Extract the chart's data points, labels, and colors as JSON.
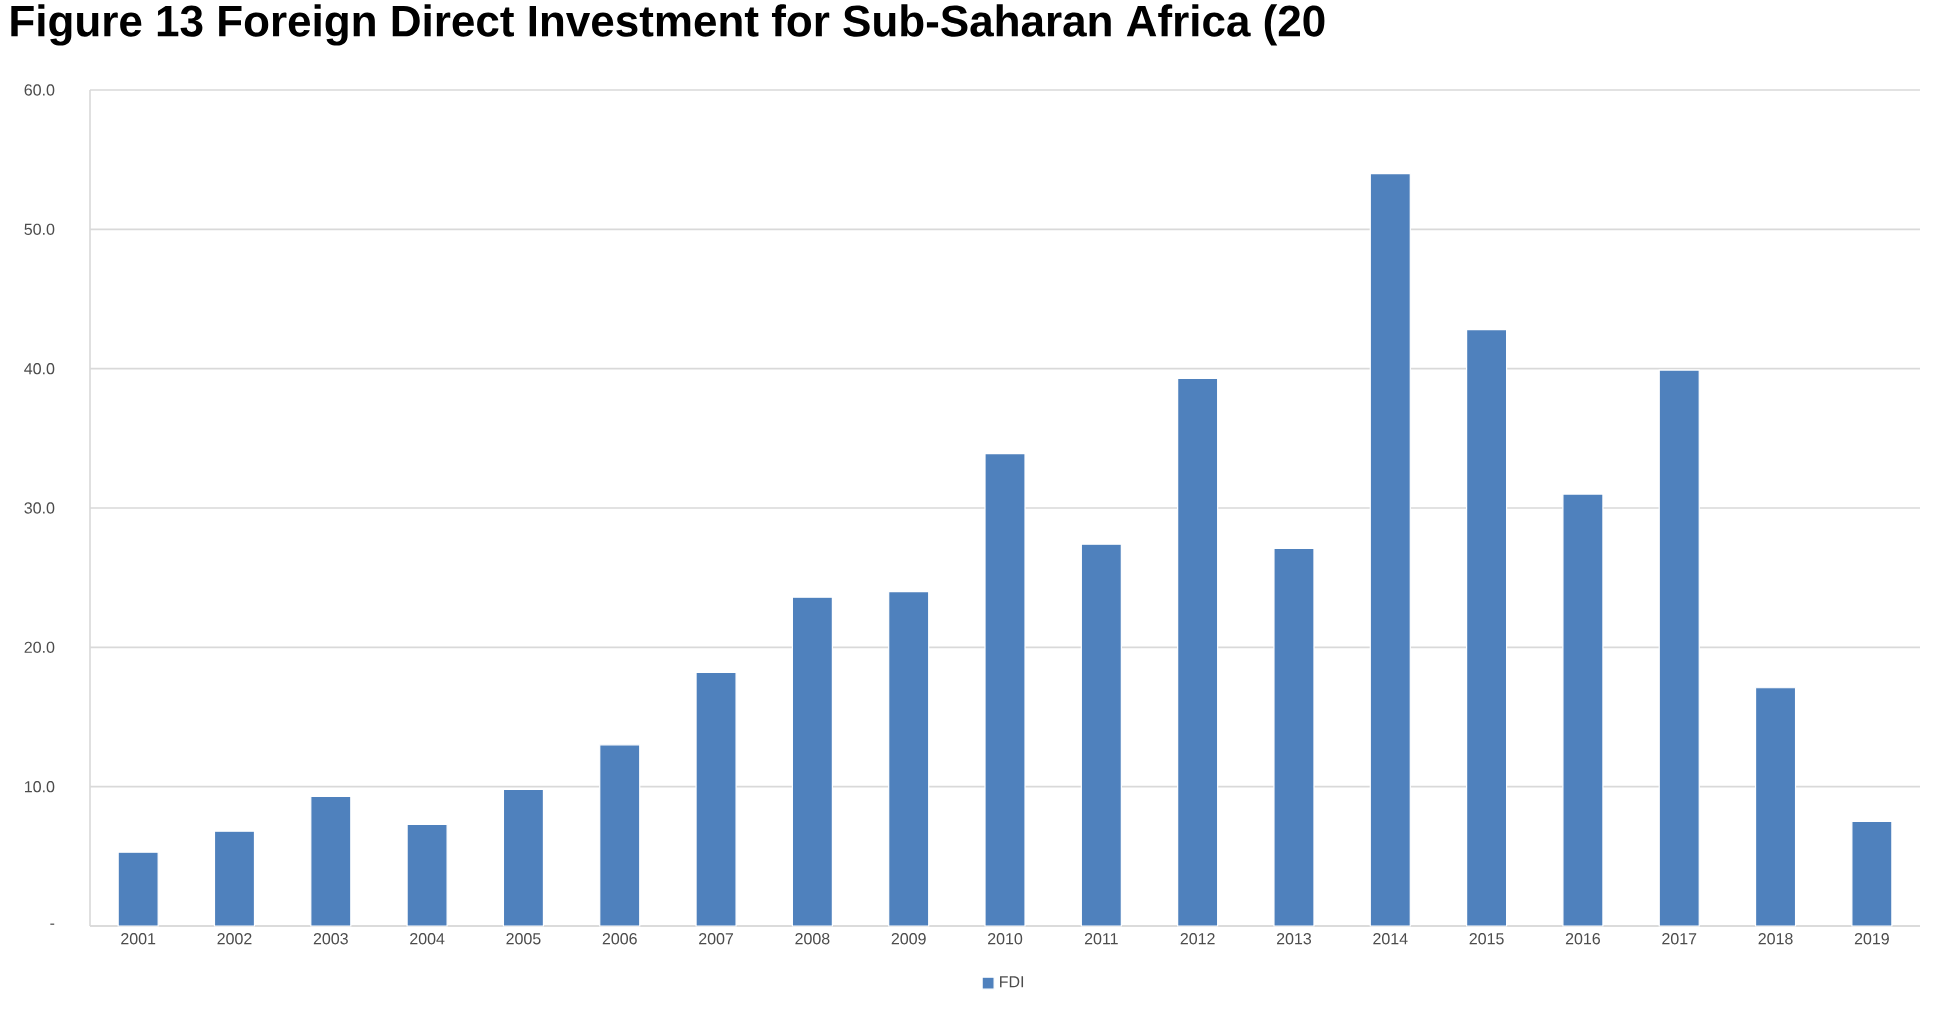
{
  "chart_data": {
    "type": "bar",
    "title": "Figure 13 Foreign Direct Investment for Sub-Saharan Africa (20",
    "categories": [
      "2001",
      "2002",
      "2003",
      "2004",
      "2005",
      "2006",
      "2007",
      "2008",
      "2009",
      "2010",
      "2011",
      "2012",
      "2013",
      "2014",
      "2015",
      "2016",
      "2017",
      "2018",
      "2019"
    ],
    "series": [
      {
        "name": "FDI",
        "color": "#4f81bd",
        "values": [
          5.3,
          6.8,
          9.3,
          7.3,
          9.8,
          13.0,
          18.2,
          23.6,
          24.0,
          33.9,
          27.4,
          39.3,
          27.1,
          54.0,
          42.8,
          31.0,
          39.9,
          17.1,
          7.5
        ]
      }
    ],
    "ylim": [
      0,
      60
    ],
    "yticks": [
      {
        "value": 0,
        "label": "-"
      },
      {
        "value": 10,
        "label": "10.0"
      },
      {
        "value": 20,
        "label": "20.0"
      },
      {
        "value": 30,
        "label": "30.0"
      },
      {
        "value": 40,
        "label": "40.0"
      },
      {
        "value": 50,
        "label": "50.0"
      },
      {
        "value": 60,
        "label": "60.0"
      }
    ],
    "grid": "y",
    "legend": "bottom"
  }
}
